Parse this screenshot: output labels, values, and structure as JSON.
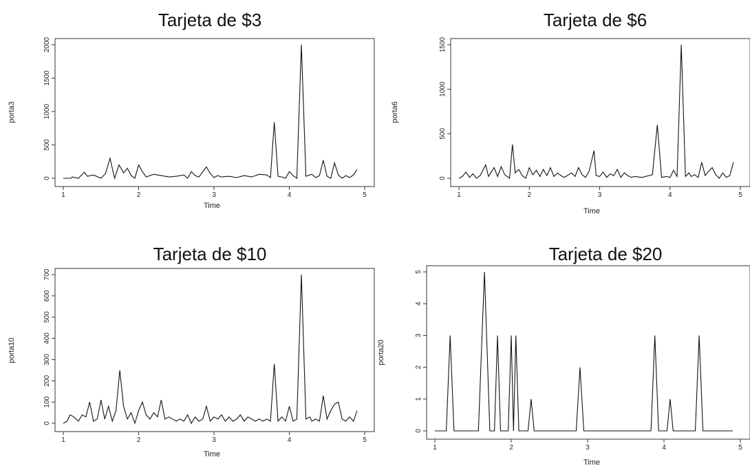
{
  "chart_data": [
    {
      "type": "line",
      "title": "Tarjeta de $3",
      "xlabel": "Time",
      "ylabel": "porta3",
      "xlim": [
        1,
        5
      ],
      "ylim": [
        0,
        2000
      ],
      "xticks": [
        "1",
        "2",
        "3",
        "4",
        "5"
      ],
      "yticks": [
        "0",
        "500",
        "1000",
        "1500",
        "2000"
      ],
      "x": [
        1.0,
        1.1,
        1.12,
        1.2,
        1.28,
        1.32,
        1.4,
        1.5,
        1.56,
        1.62,
        1.68,
        1.74,
        1.8,
        1.85,
        1.9,
        1.95,
        2.0,
        2.05,
        2.1,
        2.2,
        2.3,
        2.4,
        2.5,
        2.6,
        2.65,
        2.7,
        2.75,
        2.8,
        2.9,
        2.95,
        3.0,
        3.05,
        3.1,
        3.2,
        3.3,
        3.4,
        3.5,
        3.6,
        3.7,
        3.75,
        3.8,
        3.85,
        3.9,
        3.95,
        4.0,
        4.05,
        4.1,
        4.16,
        4.22,
        4.27,
        4.3,
        4.35,
        4.4,
        4.45,
        4.5,
        4.55,
        4.6,
        4.65,
        4.7,
        4.75,
        4.8,
        4.85,
        4.9
      ],
      "y": [
        0,
        0,
        20,
        0,
        90,
        30,
        50,
        0,
        70,
        300,
        0,
        200,
        80,
        150,
        40,
        0,
        200,
        100,
        20,
        60,
        40,
        20,
        30,
        50,
        0,
        100,
        40,
        20,
        170,
        70,
        10,
        40,
        20,
        30,
        10,
        40,
        20,
        60,
        50,
        10,
        840,
        30,
        20,
        0,
        100,
        40,
        0,
        2000,
        30,
        50,
        60,
        10,
        40,
        270,
        30,
        0,
        230,
        50,
        0,
        40,
        10,
        50,
        130
      ]
    },
    {
      "type": "line",
      "title": "Tarjeta de $6",
      "xlabel": "Time",
      "ylabel": "porta6",
      "xlim": [
        1,
        5
      ],
      "ylim": [
        0,
        1500
      ],
      "xticks": [
        "1",
        "2",
        "3",
        "4",
        "5"
      ],
      "yticks": [
        "0",
        "500",
        "1000",
        "1500"
      ],
      "x": [
        1.0,
        1.05,
        1.1,
        1.15,
        1.2,
        1.25,
        1.3,
        1.38,
        1.42,
        1.5,
        1.55,
        1.6,
        1.65,
        1.72,
        1.76,
        1.8,
        1.85,
        1.9,
        1.95,
        2.0,
        2.05,
        2.1,
        2.15,
        2.2,
        2.25,
        2.3,
        2.35,
        2.4,
        2.45,
        2.5,
        2.6,
        2.65,
        2.7,
        2.75,
        2.8,
        2.85,
        2.92,
        2.95,
        3.0,
        3.05,
        3.1,
        3.15,
        3.2,
        3.25,
        3.3,
        3.35,
        3.4,
        3.45,
        3.5,
        3.6,
        3.7,
        3.75,
        3.82,
        3.88,
        3.95,
        4.0,
        4.05,
        4.1,
        4.16,
        4.22,
        4.27,
        4.3,
        4.35,
        4.4,
        4.45,
        4.5,
        4.55,
        4.6,
        4.65,
        4.7,
        4.75,
        4.8,
        4.85,
        4.9
      ],
      "y": [
        0,
        20,
        70,
        10,
        50,
        0,
        30,
        150,
        20,
        120,
        20,
        130,
        40,
        0,
        380,
        60,
        100,
        30,
        0,
        120,
        40,
        90,
        20,
        100,
        30,
        120,
        20,
        60,
        30,
        10,
        60,
        20,
        120,
        40,
        10,
        80,
        310,
        30,
        20,
        70,
        10,
        50,
        30,
        100,
        10,
        60,
        30,
        10,
        20,
        10,
        30,
        40,
        600,
        10,
        20,
        10,
        90,
        20,
        1500,
        20,
        60,
        20,
        40,
        10,
        180,
        30,
        80,
        120,
        40,
        0,
        60,
        10,
        30,
        180
      ]
    },
    {
      "type": "line",
      "title": "Tarjeta de $10",
      "xlabel": "Time",
      "ylabel": "porta10",
      "xlim": [
        1,
        5
      ],
      "ylim": [
        0,
        700
      ],
      "xticks": [
        "1",
        "2",
        "3",
        "4",
        "5"
      ],
      "yticks": [
        "0",
        "100",
        "200",
        "300",
        "400",
        "500",
        "600",
        "700"
      ],
      "x": [
        1.0,
        1.05,
        1.09,
        1.14,
        1.2,
        1.25,
        1.3,
        1.35,
        1.4,
        1.45,
        1.5,
        1.55,
        1.6,
        1.65,
        1.7,
        1.75,
        1.8,
        1.85,
        1.9,
        1.95,
        2.0,
        2.05,
        2.1,
        2.15,
        2.2,
        2.25,
        2.3,
        2.35,
        2.4,
        2.45,
        2.5,
        2.55,
        2.6,
        2.65,
        2.7,
        2.75,
        2.8,
        2.85,
        2.9,
        2.95,
        3.0,
        3.05,
        3.1,
        3.15,
        3.2,
        3.25,
        3.3,
        3.35,
        3.4,
        3.45,
        3.5,
        3.55,
        3.6,
        3.65,
        3.7,
        3.75,
        3.8,
        3.85,
        3.9,
        3.95,
        4.0,
        4.05,
        4.1,
        4.16,
        4.22,
        4.27,
        4.3,
        4.35,
        4.4,
        4.45,
        4.5,
        4.55,
        4.6,
        4.65,
        4.7,
        4.75,
        4.8,
        4.85,
        4.9
      ],
      "y": [
        0,
        10,
        40,
        30,
        10,
        40,
        30,
        100,
        10,
        20,
        110,
        20,
        80,
        10,
        60,
        250,
        80,
        20,
        50,
        0,
        60,
        100,
        40,
        20,
        50,
        30,
        110,
        20,
        30,
        20,
        10,
        20,
        10,
        40,
        0,
        30,
        10,
        20,
        80,
        10,
        30,
        20,
        40,
        10,
        30,
        10,
        20,
        40,
        10,
        30,
        20,
        10,
        20,
        10,
        20,
        10,
        280,
        10,
        30,
        10,
        80,
        10,
        20,
        700,
        20,
        30,
        10,
        20,
        10,
        130,
        20,
        60,
        90,
        100,
        20,
        10,
        30,
        10,
        60
      ]
    },
    {
      "type": "line",
      "title": "Tarjeta de $20",
      "xlabel": "Time",
      "ylabel": "porta20",
      "xlim": [
        1,
        5
      ],
      "ylim": [
        0,
        5
      ],
      "xticks": [
        "1",
        "2",
        "3",
        "4",
        "5"
      ],
      "yticks": [
        "0",
        "1",
        "2",
        "3",
        "4",
        "5"
      ],
      "x": [
        1.0,
        1.15,
        1.2,
        1.25,
        1.57,
        1.65,
        1.72,
        1.78,
        1.82,
        1.86,
        1.96,
        2.0,
        2.03,
        2.06,
        2.1,
        2.22,
        2.26,
        2.3,
        2.85,
        2.9,
        2.95,
        3.83,
        3.88,
        3.93,
        4.04,
        4.08,
        4.12,
        4.41,
        4.46,
        4.51,
        4.9
      ],
      "y": [
        0,
        0,
        3,
        0,
        0,
        5,
        0,
        0,
        3,
        0,
        0,
        3,
        0,
        3,
        0,
        0,
        1,
        0,
        0,
        2,
        0,
        0,
        3,
        0,
        0,
        1,
        0,
        0,
        3,
        0,
        0
      ]
    }
  ]
}
